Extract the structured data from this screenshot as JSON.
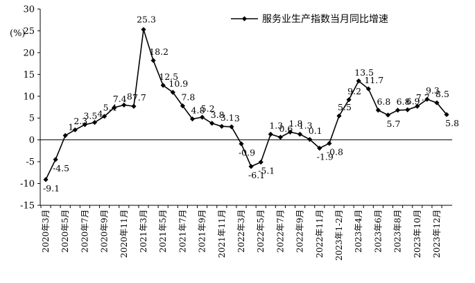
{
  "chart_data": {
    "type": "line",
    "title": "",
    "xlabel": "",
    "ylabel": "(%)",
    "ylim": [
      -15,
      30
    ],
    "ytick_step": 5,
    "grid": false,
    "legend_position": "top-right",
    "series": [
      {
        "name": "服务业生产指数当月同比增速",
        "color": "#000000",
        "marker": "diamond",
        "values": [
          -9.1,
          -4.5,
          1,
          2.3,
          3.5,
          4,
          5.4,
          7.4,
          8,
          7.7,
          25.3,
          18.2,
          12.5,
          10.9,
          7.8,
          4.8,
          5.2,
          3.8,
          3.1,
          3,
          -0.9,
          -6.1,
          -5.1,
          1.3,
          0.6,
          1.8,
          1.3,
          0.1,
          -1.9,
          -0.8,
          5.5,
          9.2,
          13.5,
          11.7,
          6.8,
          5.7,
          6.8,
          6.9,
          7.7,
          9.3,
          8.5,
          5.8
        ]
      }
    ],
    "data_labels": [
      "-9.1",
      "-4.5",
      "1",
      "2.3",
      "3.5",
      "4",
      "5.4",
      "7.4",
      "8",
      "7.7",
      "25.3",
      "18.2",
      "12.5",
      "10.9",
      "7.8",
      "4.8",
      "5.2",
      "3.8",
      "3.1",
      "3",
      "-0.9",
      "-6.1",
      "-5.1",
      "1.3",
      "0.6",
      "1.8",
      "1.3",
      "0.1",
      "-1.9",
      "-0.8",
      "5.5",
      "9.2",
      "13.5",
      "11.7",
      "6.8",
      "5.7",
      "6.8",
      "6.9",
      "7.7",
      "9.3",
      "8.5",
      "5.8"
    ],
    "x_tick_labels": [
      "2020年3月",
      "2020年5月",
      "2020年7月",
      "2020年9月",
      "2020年11月",
      "2021年3月",
      "2021年5月",
      "2021年7月",
      "2021年9月",
      "2021年11月",
      "2022年3月",
      "2022年5月",
      "2022年7月",
      "2022年9月",
      "2022年11月",
      "2023年1-2月",
      "2023年4月",
      "2023年6月",
      "2023年8月",
      "2023年10月",
      "2023年12月"
    ],
    "y_tick_labels": [
      "30",
      "25",
      "20",
      "15",
      "10",
      "5",
      "0",
      "-5",
      "-10",
      "-15"
    ]
  }
}
